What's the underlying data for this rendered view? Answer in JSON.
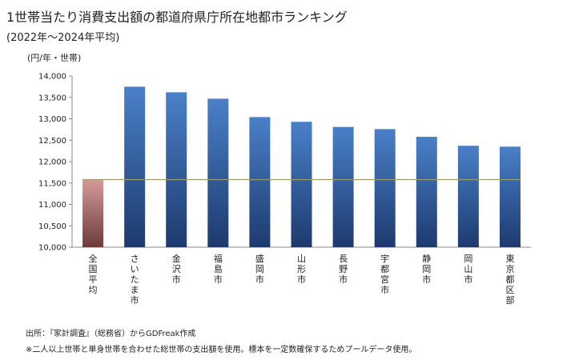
{
  "header": {
    "title": "1世帯当たり消費支出額の都道府県庁所在地都市ランキング",
    "period": "(2022年～2024年平均)",
    "unit": "(円/年・世帯)"
  },
  "footer": {
    "source": "出所：『家計調査』（総務省）からGDFreak作成",
    "note": "※二人以上世帯と単身世帯を合わせた総世帯の支出額を使用。標本を一定数確保するためプールデータ使用。"
  },
  "colors": {
    "bar_top": "#4a80c8",
    "bar_bottom": "#1d3a6e",
    "highlight_top": "#d49a9a",
    "highlight_bottom": "#6e3a3a",
    "reference_line": "#9a9a6a",
    "axis": "#888888"
  },
  "chart_data": {
    "type": "bar",
    "categories": [
      "全国平均",
      "さいたま市",
      "金沢市",
      "福島市",
      "盛岡市",
      "山形市",
      "長野市",
      "宇都宮市",
      "静岡市",
      "岡山市",
      "東京都区部"
    ],
    "values": [
      11580,
      13750,
      13620,
      13470,
      13040,
      12930,
      12810,
      12760,
      12580,
      12370,
      12350
    ],
    "highlight_index": 0,
    "reference_value": 11580,
    "ylim": [
      10000,
      14000
    ],
    "yticks": [
      10000,
      10500,
      11000,
      11500,
      12000,
      12500,
      13000,
      13500,
      14000
    ],
    "ytick_labels": [
      "10,000",
      "10,500",
      "11,000",
      "11,500",
      "12,000",
      "12,500",
      "13,000",
      "13,500",
      "14,000"
    ],
    "grid": false,
    "legend": "none"
  }
}
